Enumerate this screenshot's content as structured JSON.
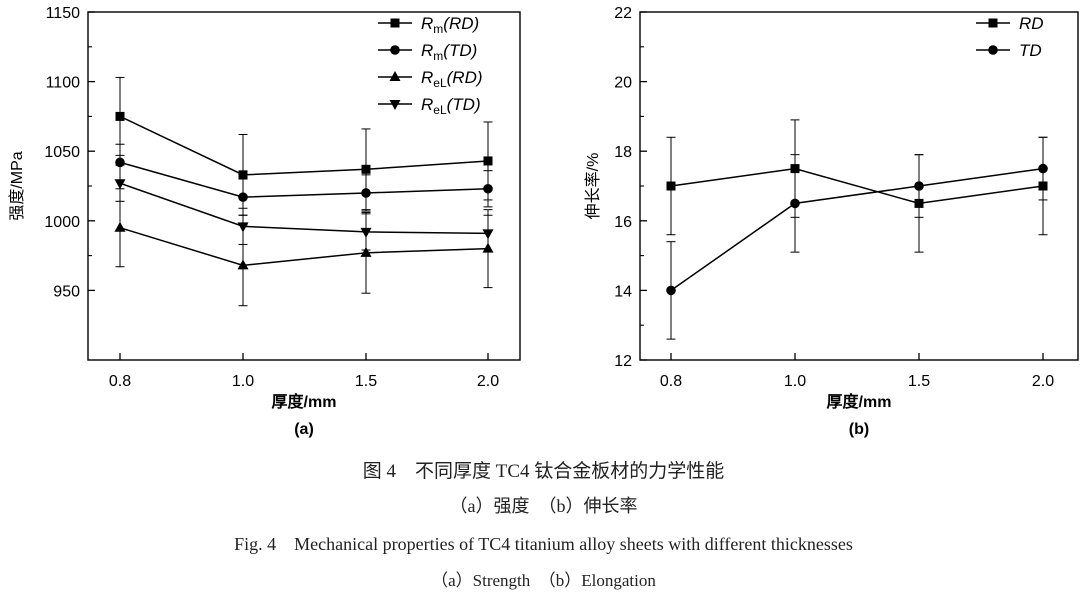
{
  "chart_data": [
    {
      "type": "line",
      "panel_label": "(a)",
      "xlabel": "厚度/mm",
      "ylabel": "强度/MPa",
      "categories": [
        "0.8",
        "1.0",
        "1.5",
        "2.0"
      ],
      "ylim": [
        900,
        1150
      ],
      "yticks": [
        950,
        1000,
        1050,
        1100,
        1150
      ],
      "legend_position": "top-right",
      "series": [
        {
          "name": "R_m(RD)",
          "legend_main": "R",
          "legend_sub": "m",
          "legend_tail": "(RD)",
          "marker": "square",
          "values": [
            1075,
            1033,
            1037,
            1043
          ],
          "errors": [
            28,
            29,
            29,
            28
          ]
        },
        {
          "name": "R_m(TD)",
          "legend_main": "R",
          "legend_sub": "m",
          "legend_tail": "(TD)",
          "marker": "circle",
          "values": [
            1042,
            1017,
            1020,
            1023
          ],
          "errors": [
            13,
            13,
            13,
            13
          ]
        },
        {
          "name": "R_eL(RD)",
          "legend_main": "R",
          "legend_sub": "eL",
          "legend_tail": "(RD)",
          "marker": "triangle-up",
          "values": [
            995,
            968,
            977,
            980
          ],
          "errors": [
            28,
            29,
            29,
            28
          ]
        },
        {
          "name": "R_eL(TD)",
          "legend_main": "R",
          "legend_sub": "eL",
          "legend_tail": "(TD)",
          "marker": "triangle-down",
          "values": [
            1027,
            996,
            992,
            991
          ],
          "errors": [
            13,
            13,
            13,
            13
          ]
        }
      ]
    },
    {
      "type": "line",
      "panel_label": "(b)",
      "xlabel": "厚度/mm",
      "ylabel": "伸长率/%",
      "categories": [
        "0.8",
        "1.0",
        "1.5",
        "2.0"
      ],
      "ylim": [
        12,
        22
      ],
      "yticks": [
        12,
        14,
        16,
        18,
        20,
        22
      ],
      "legend_position": "top-right",
      "series": [
        {
          "name": "RD",
          "legend_main": "RD",
          "legend_sub": "",
          "legend_tail": "",
          "marker": "square",
          "values": [
            17.0,
            17.5,
            16.5,
            17.0
          ],
          "errors": [
            1.4,
            1.4,
            1.4,
            1.4
          ]
        },
        {
          "name": "TD",
          "legend_main": "TD",
          "legend_sub": "",
          "legend_tail": "",
          "marker": "circle",
          "values": [
            14.0,
            16.5,
            17.0,
            17.5
          ],
          "errors": [
            1.4,
            1.4,
            0.9,
            0.9
          ]
        }
      ]
    }
  ],
  "caption": {
    "cn_title": "图 4　不同厚度 TC4 钛合金板材的力学性能",
    "cn_sub": "（a）强度　（b）伸长率",
    "en_title": "Fig. 4　Mechanical properties of TC4 titanium alloy sheets with different thicknesses",
    "en_sub": "（a）Strength　（b）Elongation"
  }
}
